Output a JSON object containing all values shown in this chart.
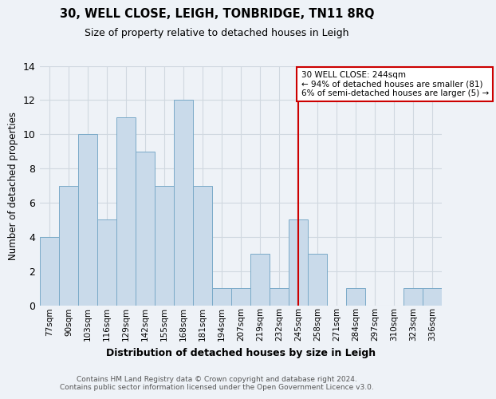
{
  "title": "30, WELL CLOSE, LEIGH, TONBRIDGE, TN11 8RQ",
  "subtitle": "Size of property relative to detached houses in Leigh",
  "xlabel": "Distribution of detached houses by size in Leigh",
  "ylabel": "Number of detached properties",
  "categories": [
    "77sqm",
    "90sqm",
    "103sqm",
    "116sqm",
    "129sqm",
    "142sqm",
    "155sqm",
    "168sqm",
    "181sqm",
    "194sqm",
    "207sqm",
    "219sqm",
    "232sqm",
    "245sqm",
    "258sqm",
    "271sqm",
    "284sqm",
    "297sqm",
    "310sqm",
    "323sqm",
    "336sqm"
  ],
  "values": [
    4,
    7,
    10,
    5,
    11,
    9,
    7,
    12,
    7,
    1,
    1,
    3,
    1,
    5,
    3,
    0,
    1,
    0,
    0,
    1,
    1
  ],
  "bar_color": "#c9daea",
  "bar_edge_color": "#7aaac8",
  "grid_color": "#d0d8e0",
  "background_color": "#eef2f7",
  "vline_x_index": 13,
  "vline_color": "#cc0000",
  "annotation_text": "30 WELL CLOSE: 244sqm\n← 94% of detached houses are smaller (81)\n6% of semi-detached houses are larger (5) →",
  "annotation_box_color": "#ffffff",
  "annotation_box_edge": "#cc0000",
  "footer_line1": "Contains HM Land Registry data © Crown copyright and database right 2024.",
  "footer_line2": "Contains public sector information licensed under the Open Government Licence v3.0.",
  "ylim": [
    0,
    14
  ],
  "yticks": [
    0,
    2,
    4,
    6,
    8,
    10,
    12,
    14
  ]
}
